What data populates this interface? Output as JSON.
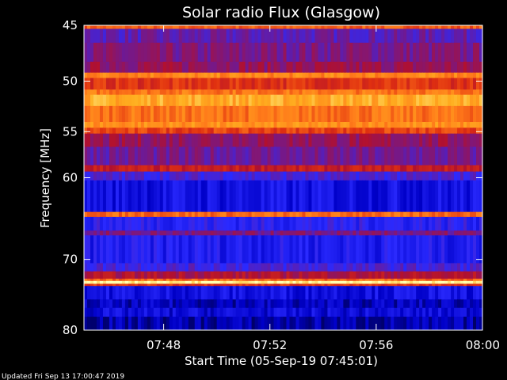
{
  "chart_data": {
    "type": "heatmap",
    "title": "Solar radio Flux (Glasgow)",
    "ylabel": "Frequency [MHz]",
    "xlabel": "Start Time (05-Sep-19 07:45:01)",
    "footer": "Updated Fri Sep 13 17:00:47 2019",
    "x_range_minutes": [
      0,
      15
    ],
    "x_ticks": [
      {
        "label": "07:48",
        "minute": 3
      },
      {
        "label": "07:52",
        "minute": 7
      },
      {
        "label": "07:56",
        "minute": 11
      },
      {
        "label": "08:00",
        "minute": 15
      }
    ],
    "y_range_mhz": [
      45,
      80
    ],
    "y_ticks": [
      45,
      50,
      55,
      60,
      70,
      80
    ],
    "y_scale": "log",
    "colormap": [
      "#000033",
      "#0000c8",
      "#2a2aff",
      "#6a1a9a",
      "#b01030",
      "#e03010",
      "#ff7a1a",
      "#ffb020",
      "#ffffb0"
    ],
    "frequency_bands": [
      {
        "mhz": [
          45.0,
          45.3
        ],
        "level": 0.7
      },
      {
        "mhz": [
          45.3,
          46.5
        ],
        "level": 0.35
      },
      {
        "mhz": [
          46.5,
          48.2
        ],
        "level": 0.4
      },
      {
        "mhz": [
          48.2,
          49.2
        ],
        "level": 0.45
      },
      {
        "mhz": [
          49.2,
          49.7
        ],
        "level": 0.78
      },
      {
        "mhz": [
          49.7,
          50.8
        ],
        "level": 0.62
      },
      {
        "mhz": [
          50.8,
          51.3
        ],
        "level": 0.75
      },
      {
        "mhz": [
          51.3,
          52.4
        ],
        "level": 0.86
      },
      {
        "mhz": [
          52.4,
          54.0
        ],
        "level": 0.74
      },
      {
        "mhz": [
          54.0,
          54.6
        ],
        "level": 0.8
      },
      {
        "mhz": [
          54.6,
          55.2
        ],
        "level": 0.65
      },
      {
        "mhz": [
          55.2,
          56.6
        ],
        "level": 0.45
      },
      {
        "mhz": [
          56.6,
          58.6
        ],
        "level": 0.38
      },
      {
        "mhz": [
          58.6,
          59.3
        ],
        "level": 0.55
      },
      {
        "mhz": [
          59.3,
          60.3
        ],
        "level": 0.3
      },
      {
        "mhz": [
          60.3,
          64.0
        ],
        "level": 0.18
      },
      {
        "mhz": [
          64.0,
          64.6
        ],
        "level": 0.72
      },
      {
        "mhz": [
          64.6,
          66.3
        ],
        "level": 0.25
      },
      {
        "mhz": [
          66.3,
          66.9
        ],
        "level": 0.4
      },
      {
        "mhz": [
          66.9,
          70.5
        ],
        "level": 0.22
      },
      {
        "mhz": [
          70.5,
          71.6
        ],
        "level": 0.3
      },
      {
        "mhz": [
          71.6,
          72.6
        ],
        "level": 0.5
      },
      {
        "mhz": [
          72.6,
          72.9
        ],
        "level": 0.72
      },
      {
        "mhz": [
          72.9,
          73.3
        ],
        "level": 0.98
      },
      {
        "mhz": [
          73.3,
          73.6
        ],
        "level": 0.62
      },
      {
        "mhz": [
          73.6,
          75.5
        ],
        "level": 0.18
      },
      {
        "mhz": [
          75.5,
          76.7
        ],
        "level": 0.12
      },
      {
        "mhz": [
          76.7,
          78.0
        ],
        "level": 0.16
      },
      {
        "mhz": [
          78.0,
          80.0
        ],
        "level": 0.1
      }
    ]
  }
}
